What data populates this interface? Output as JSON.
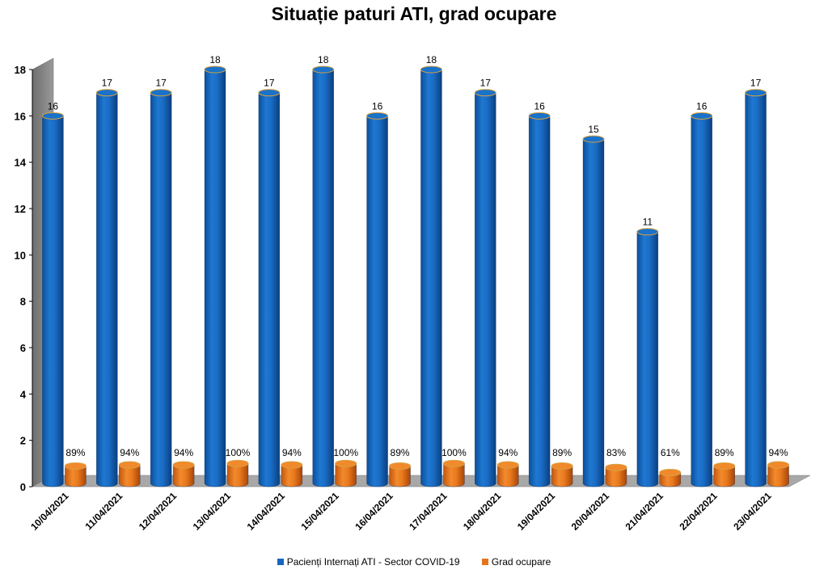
{
  "chart_data": {
    "type": "bar",
    "title": "Situație paturi ATI, grad ocupare",
    "categories": [
      "10/04/2021",
      "11/04/2021",
      "12/04/2021",
      "13/04/2021",
      "14/04/2021",
      "15/04/2021",
      "16/04/2021",
      "17/04/2021",
      "18/04/2021",
      "19/04/2021",
      "20/04/2021",
      "21/04/2021",
      "22/04/2021",
      "23/04/2021"
    ],
    "series": [
      {
        "name": "Pacienți Internați ATI - Sector COVID-19",
        "color": "#1565C0",
        "values": [
          16,
          17,
          17,
          18,
          17,
          18,
          16,
          18,
          17,
          16,
          15,
          11,
          16,
          17
        ],
        "labels": [
          "16",
          "17",
          "17",
          "18",
          "17",
          "18",
          "16",
          "18",
          "17",
          "16",
          "15",
          "11",
          "16",
          "17"
        ]
      },
      {
        "name": "Grad ocupare",
        "color": "#E8741A",
        "values": [
          0.89,
          0.94,
          0.94,
          1.0,
          0.94,
          1.0,
          0.89,
          1.0,
          0.94,
          0.89,
          0.83,
          0.61,
          0.89,
          0.94
        ],
        "labels": [
          "89%",
          "94%",
          "94%",
          "100%",
          "94%",
          "100%",
          "89%",
          "100%",
          "94%",
          "89%",
          "83%",
          "61%",
          "89%",
          "94%"
        ]
      }
    ],
    "yticks": [
      "0",
      "2",
      "4",
      "6",
      "8",
      "10",
      "12",
      "14",
      "16",
      "18"
    ],
    "ylim": [
      0,
      18
    ],
    "xlabel": "",
    "ylabel": "",
    "grid": false,
    "legend_position": "bottom"
  }
}
